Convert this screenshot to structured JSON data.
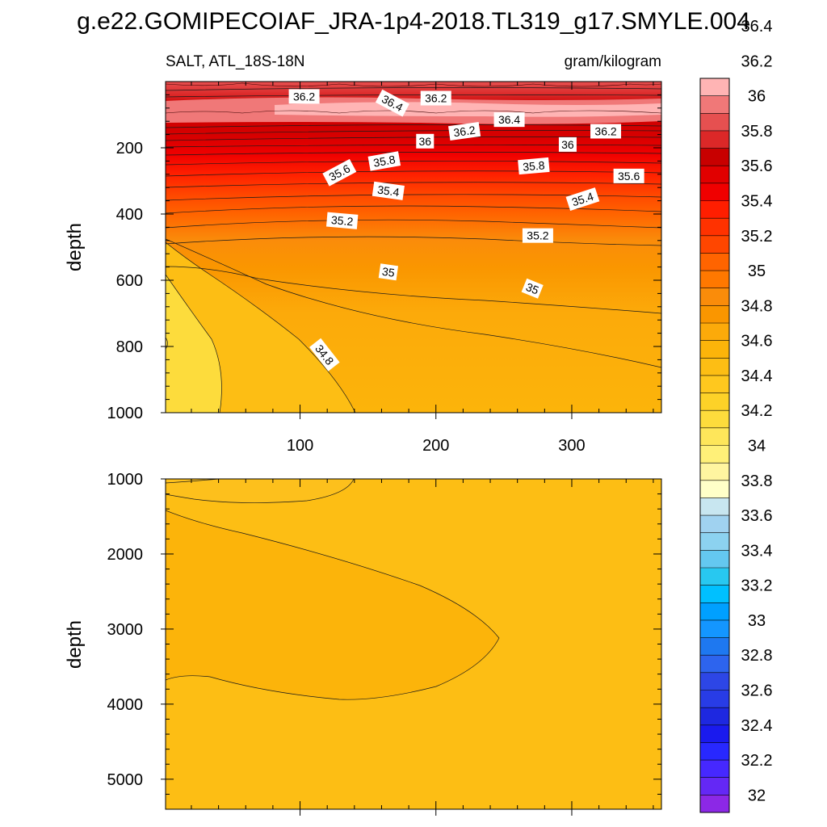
{
  "title": "g.e22.GOMIPECOIAF_JRA-1p4-2018.TL319_g17.SMYLE.004",
  "colors": {
    "frame": "#000000",
    "background": "#ffffff"
  },
  "chart_data": [
    {
      "type": "contour",
      "panel": "upper",
      "variable_label": "SALT, ATL_18S-18N",
      "units_label": "gram/kilogram",
      "ylabel": "depth",
      "xlabel": "",
      "xlim": [
        1,
        366
      ],
      "ylim": [
        0,
        1000
      ],
      "y_inverted": true,
      "x_ticks": [
        100,
        200,
        300
      ],
      "y_ticks": [
        200,
        400,
        600,
        800,
        1000
      ],
      "contour_labels": [
        {
          "text": "36.2",
          "x": 103,
          "y": 45,
          "angle": 0
        },
        {
          "text": "36.4",
          "x": 168,
          "y": 65,
          "angle": 28
        },
        {
          "text": "36.2",
          "x": 200,
          "y": 50,
          "angle": 0
        },
        {
          "text": "36.4",
          "x": 254,
          "y": 115,
          "angle": 0
        },
        {
          "text": "36.2",
          "x": 221,
          "y": 150,
          "angle": -8
        },
        {
          "text": "36.2",
          "x": 325,
          "y": 150,
          "angle": 0
        },
        {
          "text": "36",
          "x": 192,
          "y": 180,
          "angle": 0
        },
        {
          "text": "36",
          "x": 297,
          "y": 190,
          "angle": 0
        },
        {
          "text": "35.8",
          "x": 162,
          "y": 240,
          "angle": -10
        },
        {
          "text": "35.8",
          "x": 272,
          "y": 255,
          "angle": -5
        },
        {
          "text": "35.6",
          "x": 129,
          "y": 275,
          "angle": -28
        },
        {
          "text": "35.6",
          "x": 342,
          "y": 285,
          "angle": 0
        },
        {
          "text": "35.4",
          "x": 165,
          "y": 330,
          "angle": 8
        },
        {
          "text": "35.4",
          "x": 308,
          "y": 355,
          "angle": -18
        },
        {
          "text": "35.2",
          "x": 131,
          "y": 420,
          "angle": 5
        },
        {
          "text": "35.2",
          "x": 275,
          "y": 465,
          "angle": 0
        },
        {
          "text": "35",
          "x": 165,
          "y": 575,
          "angle": 8
        },
        {
          "text": "35",
          "x": 271,
          "y": 625,
          "angle": 22
        },
        {
          "text": "34.8",
          "x": 118,
          "y": 825,
          "angle": 52
        }
      ]
    },
    {
      "type": "contour",
      "panel": "lower",
      "ylabel": "depth",
      "xlabel": "",
      "xlim": [
        1,
        366
      ],
      "ylim": [
        1000,
        5400
      ],
      "y_inverted": true,
      "y_ticks": [
        1000,
        2000,
        3000,
        4000,
        5000
      ]
    }
  ],
  "colorbar": {
    "colors": [
      "#8c28e6",
      "#6428f5",
      "#4628ff",
      "#2828ff",
      "#1a1aee",
      "#1e28e0",
      "#283ce6",
      "#2d46e6",
      "#2d64ee",
      "#1e78f0",
      "#1496ff",
      "#00a0ff",
      "#00c0ff",
      "#28c8f0",
      "#64c8f0",
      "#8cd2f0",
      "#a0d2f0",
      "#c8e6f0",
      "#ffffc8",
      "#fff5a0",
      "#fff078",
      "#fee65a",
      "#fddc3c",
      "#fdd228",
      "#ffc81e",
      "#fdbe14",
      "#fcb40a",
      "#fcaa0a",
      "#fa9600",
      "#fa8c0a",
      "#ff7800",
      "#ff6400",
      "#ff4600",
      "#ff3200",
      "#ff1e00",
      "#f00000",
      "#e10000",
      "#c80000",
      "#dc2828",
      "#e65050",
      "#f07878",
      "#ffb4b4"
    ],
    "labels": [
      "32",
      "32.2",
      "32.4",
      "32.6",
      "32.8",
      "33",
      "33.2",
      "33.4",
      "33.6",
      "33.8",
      "34",
      "34.2",
      "34.4",
      "34.6",
      "34.8",
      "35",
      "35.2",
      "35.4",
      "35.6",
      "35.8",
      "36",
      "36.2",
      "36.4"
    ]
  }
}
